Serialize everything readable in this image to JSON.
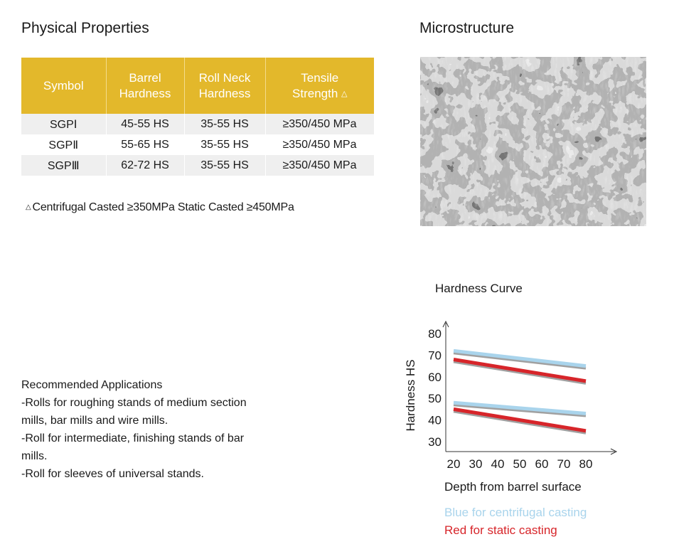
{
  "physical_properties": {
    "heading": "Physical Properties",
    "table": {
      "headers": [
        {
          "line1": "Symbol",
          "line2": ""
        },
        {
          "line1": "Barrel",
          "line2": "Hardness"
        },
        {
          "line1": "Roll Neck",
          "line2": "Hardness"
        },
        {
          "line1": "Tensile",
          "line2": "Strength",
          "mark": "△"
        }
      ],
      "rows": [
        {
          "symbol": "SGPⅠ",
          "barrel": "45-55 HS",
          "neck": "35-55 HS",
          "tensile": "≥350/450 MPa"
        },
        {
          "symbol": "SGPⅡ",
          "barrel": "55-65 HS",
          "neck": "35-55 HS",
          "tensile": "≥350/450 MPa"
        },
        {
          "symbol": "SGPⅢ",
          "barrel": "62-72 HS",
          "neck": "35-55 HS",
          "tensile": "≥350/450 MPa"
        }
      ]
    },
    "footnote": {
      "mark": "△",
      "text": "Centrifugal Casted ≥350MPa  Static Casted ≥450MPa"
    }
  },
  "microstructure": {
    "heading": "Microstructure",
    "image": "micrograph-photo"
  },
  "applications": {
    "heading": "Recommended Applications",
    "lines": [
      "-Rolls for roughing stands of medium section",
      "mills, bar mills and wire mills.",
      "-Roll for intermediate, finishing stands of bar",
      "mills.",
      "-Roll for sleeves of universal stands."
    ]
  },
  "colors": {
    "header_gold": "#e3b82b",
    "centrifugal_blue": "#a9d4ec",
    "static_red": "#d7252a",
    "shadow_gray": "#a0a0a0"
  },
  "chart_data": {
    "type": "line",
    "title": "Hardness Curve",
    "xlabel": "Depth from barrel surface",
    "ylabel": "Hardness HS",
    "x_ticks": [
      20,
      30,
      40,
      50,
      60,
      70,
      80
    ],
    "y_ticks": [
      30,
      40,
      50,
      60,
      70,
      80
    ],
    "xlim": [
      20,
      80
    ],
    "ylim": [
      30,
      80
    ],
    "series": [
      {
        "color": "blue",
        "x": [
          20,
          80
        ],
        "y": [
          72,
          65
        ]
      },
      {
        "color": "red",
        "x": [
          20,
          80
        ],
        "y": [
          68,
          58
        ]
      },
      {
        "color": "blue",
        "x": [
          20,
          80
        ],
        "y": [
          48,
          43
        ]
      },
      {
        "color": "red",
        "x": [
          20,
          80
        ],
        "y": [
          45,
          35
        ]
      }
    ],
    "legend": [
      {
        "label": "Blue for centrifugal casting",
        "color": "#a9d4ec"
      },
      {
        "label": "Red for static casting",
        "color": "#d7252a"
      }
    ]
  }
}
